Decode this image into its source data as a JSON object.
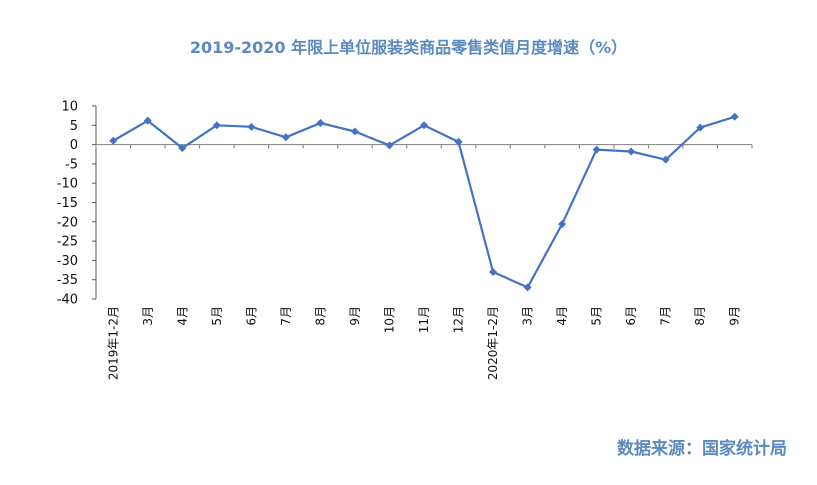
{
  "chart_data": {
    "type": "line",
    "title": "2019-2020 年限上单位服装类商品零售类值月度增速（%）",
    "xlabel": "",
    "ylabel": "",
    "ylim": [
      -40,
      10
    ],
    "yticks": [
      10,
      5,
      0,
      -5,
      -10,
      -15,
      -20,
      -25,
      -30,
      -35,
      -40
    ],
    "grid": false,
    "legend": "none",
    "categories": [
      "2019年1-2月",
      "3月",
      "4月",
      "5月",
      "6月",
      "7月",
      "8月",
      "9月",
      "10月",
      "11月",
      "12月",
      "2020年1-2月",
      "3月",
      "4月",
      "5月",
      "6月",
      "7月",
      "8月",
      "9月"
    ],
    "series": [
      {
        "values": [
          1.0,
          6.2,
          -0.9,
          5.0,
          4.6,
          1.9,
          5.6,
          3.4,
          -0.2,
          5.0,
          0.7,
          -33.0,
          -37.0,
          -20.6,
          -1.3,
          -1.8,
          -3.9,
          4.4,
          7.2
        ]
      }
    ],
    "line_color": "#4472C4",
    "marker": "diamond"
  },
  "source_note": "数据来源：国家统计局",
  "colors": {
    "title": "#5B8AC0",
    "axis": "#595959",
    "zero_line": "#7F7F7F"
  }
}
